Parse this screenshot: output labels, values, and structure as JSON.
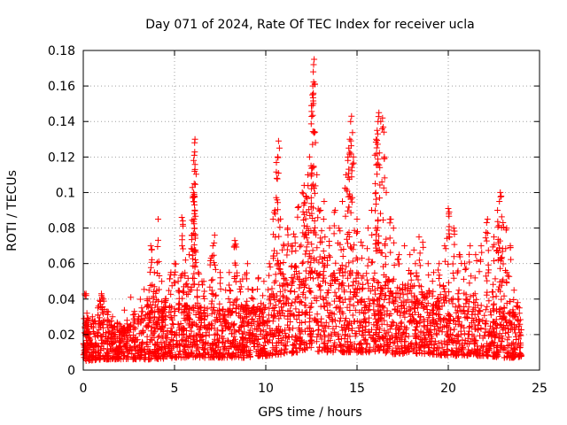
{
  "chart_data": {
    "type": "scatter",
    "title": "Day 071 of 2024, Rate Of TEC Index for receiver ucla",
    "xlabel": "GPS time / hours",
    "ylabel": "ROTI / TECUs",
    "xlim": [
      0,
      25
    ],
    "ylim": [
      0,
      0.18
    ],
    "xticks": [
      0,
      5,
      10,
      15,
      20,
      25
    ],
    "xtick_labels": [
      "0",
      "5",
      "10",
      "15",
      "20",
      "25"
    ],
    "yticks": [
      0,
      0.02,
      0.04,
      0.06,
      0.08,
      0.1,
      0.12,
      0.14,
      0.16,
      0.18
    ],
    "ytick_labels": [
      "0",
      "0.02",
      "0.04",
      "0.06",
      "0.08",
      "0.1",
      "0.12",
      "0.14",
      "0.16",
      "0.18"
    ],
    "grid": true,
    "marker": "+",
    "marker_color": "#ff0000",
    "series": [
      {
        "name": "ROTI",
        "points": [
          [
            0.1,
            0.042
          ],
          [
            0.15,
            0.043
          ],
          [
            0.2,
            0.032
          ],
          [
            0.3,
            0.028
          ],
          [
            0.5,
            0.03
          ],
          [
            0.8,
            0.035
          ],
          [
            1.0,
            0.042
          ],
          [
            1.1,
            0.04
          ],
          [
            1.3,
            0.033
          ],
          [
            1.6,
            0.03
          ],
          [
            2.0,
            0.022
          ],
          [
            2.4,
            0.028
          ],
          [
            2.8,
            0.033
          ],
          [
            3.2,
            0.035
          ],
          [
            3.5,
            0.04
          ],
          [
            3.6,
            0.045
          ],
          [
            3.7,
            0.07
          ],
          [
            3.75,
            0.068
          ],
          [
            3.9,
            0.055
          ],
          [
            4.1,
            0.085
          ],
          [
            4.3,
            0.05
          ],
          [
            4.5,
            0.04
          ],
          [
            4.8,
            0.055
          ],
          [
            5.0,
            0.06
          ],
          [
            5.2,
            0.05
          ],
          [
            5.4,
            0.086
          ],
          [
            5.45,
            0.084
          ],
          [
            5.6,
            0.062
          ],
          [
            5.8,
            0.065
          ],
          [
            5.95,
            0.076
          ],
          [
            6.0,
            0.097
          ],
          [
            6.05,
            0.1
          ],
          [
            6.08,
            0.105
          ],
          [
            6.1,
            0.112
          ],
          [
            6.12,
            0.113
          ],
          [
            6.05,
            0.118
          ],
          [
            6.1,
            0.128
          ],
          [
            6.12,
            0.13
          ],
          [
            6.3,
            0.055
          ],
          [
            6.6,
            0.05
          ],
          [
            7.0,
            0.063
          ],
          [
            7.1,
            0.07
          ],
          [
            7.2,
            0.076
          ],
          [
            7.5,
            0.055
          ],
          [
            7.8,
            0.045
          ],
          [
            8.0,
            0.055
          ],
          [
            8.3,
            0.073
          ],
          [
            8.35,
            0.071
          ],
          [
            8.6,
            0.05
          ],
          [
            9.0,
            0.06
          ],
          [
            9.3,
            0.045
          ],
          [
            9.6,
            0.052
          ],
          [
            9.9,
            0.05
          ],
          [
            10.2,
            0.06
          ],
          [
            10.4,
            0.085
          ],
          [
            10.5,
            0.09
          ],
          [
            10.6,
            0.108
          ],
          [
            10.65,
            0.12
          ],
          [
            10.7,
            0.129
          ],
          [
            10.75,
            0.125
          ],
          [
            10.8,
            0.06
          ],
          [
            11.0,
            0.07
          ],
          [
            11.2,
            0.08
          ],
          [
            11.4,
            0.07
          ],
          [
            11.6,
            0.075
          ],
          [
            11.8,
            0.092
          ],
          [
            12.0,
            0.1
          ],
          [
            12.1,
            0.104
          ],
          [
            12.2,
            0.098
          ],
          [
            12.3,
            0.11
          ],
          [
            12.4,
            0.12
          ],
          [
            12.5,
            0.149
          ],
          [
            12.55,
            0.155
          ],
          [
            12.58,
            0.16
          ],
          [
            12.6,
            0.168
          ],
          [
            12.62,
            0.172
          ],
          [
            12.65,
            0.175
          ],
          [
            12.7,
            0.134
          ],
          [
            12.8,
            0.11
          ],
          [
            13.0,
            0.09
          ],
          [
            13.2,
            0.095
          ],
          [
            13.5,
            0.08
          ],
          [
            13.8,
            0.09
          ],
          [
            14.0,
            0.08
          ],
          [
            14.2,
            0.095
          ],
          [
            14.4,
            0.11
          ],
          [
            14.5,
            0.118
          ],
          [
            14.55,
            0.125
          ],
          [
            14.6,
            0.13
          ],
          [
            14.65,
            0.14
          ],
          [
            14.7,
            0.143
          ],
          [
            14.8,
            0.12
          ],
          [
            15.0,
            0.085
          ],
          [
            15.3,
            0.07
          ],
          [
            15.6,
            0.08
          ],
          [
            15.8,
            0.09
          ],
          [
            16.0,
            0.105
          ],
          [
            16.05,
            0.13
          ],
          [
            16.1,
            0.135
          ],
          [
            16.15,
            0.14
          ],
          [
            16.2,
            0.145
          ],
          [
            16.3,
            0.14
          ],
          [
            16.4,
            0.142
          ],
          [
            16.5,
            0.12
          ],
          [
            16.6,
            0.1
          ],
          [
            16.8,
            0.085
          ],
          [
            17.0,
            0.08
          ],
          [
            17.3,
            0.065
          ],
          [
            17.6,
            0.07
          ],
          [
            17.9,
            0.065
          ],
          [
            18.2,
            0.06
          ],
          [
            18.4,
            0.075
          ],
          [
            18.6,
            0.072
          ],
          [
            18.9,
            0.06
          ],
          [
            19.2,
            0.055
          ],
          [
            19.5,
            0.06
          ],
          [
            19.8,
            0.07
          ],
          [
            20.0,
            0.091
          ],
          [
            20.05,
            0.089
          ],
          [
            20.3,
            0.08
          ],
          [
            20.6,
            0.065
          ],
          [
            20.9,
            0.06
          ],
          [
            21.2,
            0.07
          ],
          [
            21.5,
            0.065
          ],
          [
            21.8,
            0.07
          ],
          [
            22.1,
            0.083
          ],
          [
            22.15,
            0.085
          ],
          [
            22.5,
            0.075
          ],
          [
            22.7,
            0.09
          ],
          [
            22.8,
            0.095
          ],
          [
            22.85,
            0.1
          ],
          [
            22.9,
            0.098
          ],
          [
            23.0,
            0.083
          ],
          [
            23.2,
            0.08
          ],
          [
            23.4,
            0.07
          ],
          [
            23.6,
            0.045
          ],
          [
            23.8,
            0.038
          ],
          [
            23.9,
            0.035
          ]
        ],
        "background_band": [
          [
            0,
            0.005,
            0.025
          ],
          [
            1,
            0.006,
            0.03
          ],
          [
            2,
            0.006,
            0.026
          ],
          [
            3,
            0.006,
            0.03
          ],
          [
            4,
            0.006,
            0.034
          ],
          [
            5,
            0.007,
            0.038
          ],
          [
            6,
            0.007,
            0.037
          ],
          [
            7,
            0.007,
            0.035
          ],
          [
            8,
            0.007,
            0.035
          ],
          [
            9,
            0.007,
            0.037
          ],
          [
            10,
            0.008,
            0.04
          ],
          [
            11,
            0.009,
            0.05
          ],
          [
            12,
            0.01,
            0.065
          ],
          [
            12.5,
            0.012,
            0.07
          ],
          [
            13,
            0.01,
            0.065
          ],
          [
            14,
            0.01,
            0.06
          ],
          [
            15,
            0.01,
            0.055
          ],
          [
            16,
            0.01,
            0.055
          ],
          [
            17,
            0.009,
            0.05
          ],
          [
            18,
            0.009,
            0.048
          ],
          [
            19,
            0.009,
            0.045
          ],
          [
            20,
            0.008,
            0.042
          ],
          [
            21,
            0.008,
            0.04
          ],
          [
            22,
            0.008,
            0.04
          ],
          [
            23,
            0.007,
            0.036
          ],
          [
            24,
            0.007,
            0.032
          ]
        ]
      }
    ]
  }
}
